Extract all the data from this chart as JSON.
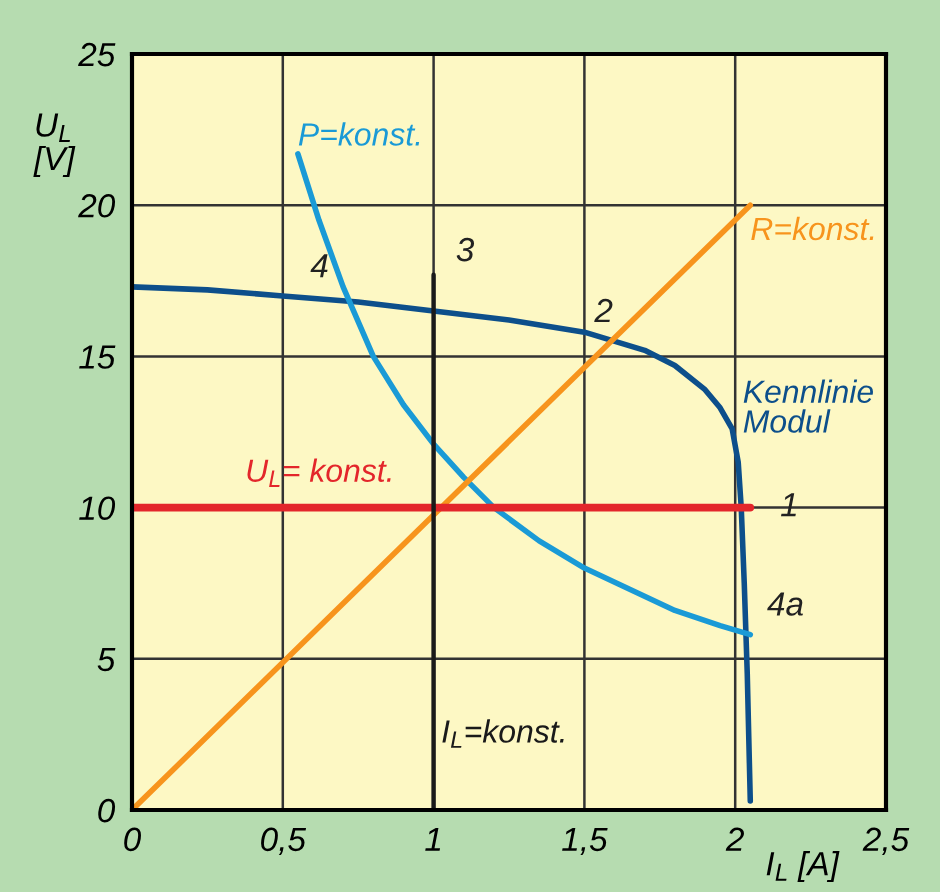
{
  "chart_data": {
    "type": "line",
    "xlabel": "I$_{L}$ [A]",
    "ylabel": "U$_{L}$\n[V]",
    "xlim": [
      0,
      2.5
    ],
    "ylim": [
      0,
      25
    ],
    "xticks": [
      0,
      {
        "value": 0.5,
        "label": "0,5"
      },
      1,
      {
        "value": 1.5,
        "label": "1,5"
      },
      2,
      {
        "value": 2.5,
        "label": "2,5"
      }
    ],
    "yticks": [
      0,
      5,
      10,
      15,
      20,
      25
    ],
    "grid": true,
    "series": [
      {
        "name": "Kennlinie\nModul",
        "color": "#0d4f8b",
        "x": [
          0,
          0.25,
          0.5,
          0.75,
          1.0,
          1.25,
          1.5,
          1.7,
          1.8,
          1.9,
          1.95,
          1.99,
          2.01,
          2.02,
          2.03,
          2.04,
          2.05
        ],
        "values": [
          17.3,
          17.2,
          17.0,
          16.8,
          16.5,
          16.2,
          15.8,
          15.2,
          14.7,
          13.9,
          13.3,
          12.6,
          11.5,
          10.0,
          7.5,
          4.5,
          0.3
        ]
      },
      {
        "name": "P=konst.",
        "color": "#1a9ad6",
        "x": [
          0.55,
          0.62,
          0.7,
          0.8,
          0.9,
          1.0,
          1.1,
          1.2,
          1.35,
          1.5,
          1.65,
          1.8,
          1.95,
          2.05
        ],
        "values": [
          21.7,
          19.5,
          17.3,
          15.0,
          13.4,
          12.1,
          11.0,
          10.0,
          8.9,
          8.0,
          7.3,
          6.6,
          6.1,
          5.8
        ]
      },
      {
        "name": "R=konst.",
        "color": "#f7941d",
        "x": [
          0,
          2.05
        ],
        "values": [
          0,
          20.0
        ]
      },
      {
        "name": "U$_{L}$= konst.",
        "color": "#e3262b",
        "x": [
          0,
          2.05
        ],
        "values": [
          10,
          10
        ]
      },
      {
        "name": "I$_{L}$=konst.",
        "color": "#1a1a1a",
        "x": [
          1.0,
          1.0
        ],
        "values": [
          0,
          17.7
        ]
      }
    ],
    "annotations": [
      {
        "text": "1",
        "x": 2.02,
        "y": 10
      },
      {
        "text": "2",
        "x": 1.57,
        "y": 15.5
      },
      {
        "text": "3",
        "x": 1.0,
        "y": 17.7
      },
      {
        "text": "4",
        "x": 0.72,
        "y": 16.8
      },
      {
        "text": "4a",
        "x": 2.05,
        "y": 5.8
      }
    ]
  }
}
